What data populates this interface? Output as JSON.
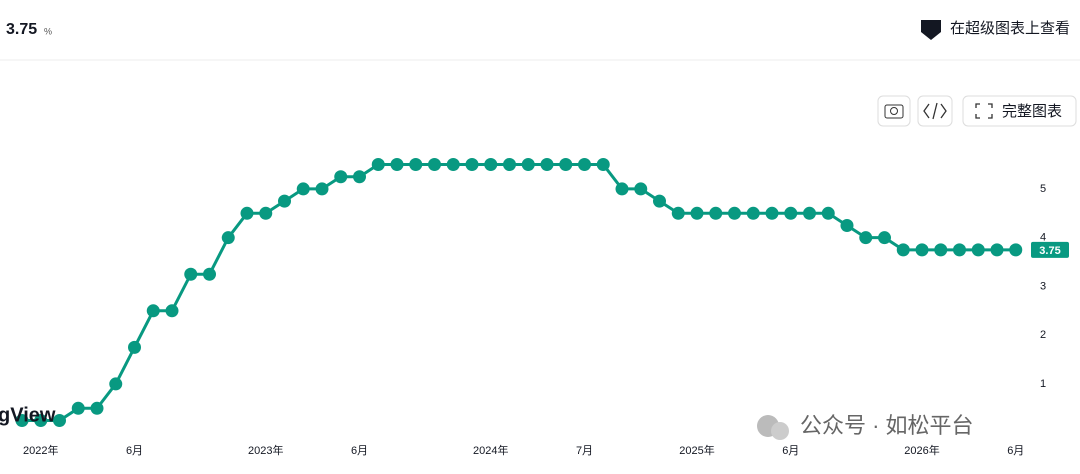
{
  "header": {
    "value": "3.75",
    "unit": "%",
    "link": "在超级图表上查看"
  },
  "toolbar": {
    "full_chart": "完整图表"
  },
  "watermark": {
    "brand": "gView",
    "wechat": "公众号 · 如松平台"
  },
  "chart_data": {
    "type": "line",
    "color": "#089981",
    "categories": [
      null,
      "2022年",
      null,
      null,
      null,
      null,
      "6月",
      null,
      null,
      null,
      null,
      null,
      null,
      "2023年",
      null,
      null,
      null,
      null,
      "6月",
      null,
      null,
      null,
      null,
      null,
      null,
      "2024年",
      null,
      null,
      null,
      null,
      "7月",
      null,
      null,
      null,
      null,
      null,
      "2025年",
      null,
      null,
      null,
      null,
      "6月",
      null,
      null,
      null,
      null,
      null,
      null,
      "2026年",
      null,
      null,
      null,
      null,
      "6月"
    ],
    "values": [
      0.25,
      0.25,
      0.25,
      0.5,
      0.5,
      1.0,
      1.75,
      2.5,
      2.5,
      3.25,
      3.25,
      4.0,
      4.5,
      4.5,
      4.75,
      5.0,
      5.0,
      5.25,
      5.25,
      5.5,
      5.5,
      5.5,
      5.5,
      5.5,
      5.5,
      5.5,
      5.5,
      5.5,
      5.5,
      5.5,
      5.5,
      5.5,
      5.0,
      5.0,
      4.75,
      4.5,
      4.5,
      4.5,
      4.5,
      4.5,
      4.5,
      4.5,
      4.5,
      4.5,
      4.25,
      4.0,
      4.0,
      3.75,
      3.75,
      3.75,
      3.75,
      3.75,
      3.75,
      3.75
    ],
    "ylim": [
      -0.15,
      7
    ],
    "yticks": [
      1,
      2,
      3,
      4,
      5
    ],
    "grid": false
  }
}
